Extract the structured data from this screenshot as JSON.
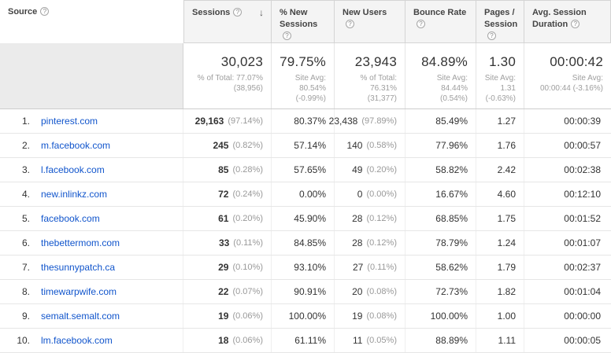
{
  "icons": {
    "help": "?",
    "sort_descending": "↓"
  },
  "header": {
    "columns": [
      {
        "label": "Source"
      },
      {
        "label": "Sessions"
      },
      {
        "label": "% New Sessions"
      },
      {
        "label": "New Users"
      },
      {
        "label": "Bounce Rate"
      },
      {
        "label": "Pages / Session"
      },
      {
        "label": "Avg. Session Duration"
      }
    ]
  },
  "summary": {
    "sessions": {
      "value": "30,023",
      "line1": "% of Total: 77.07%",
      "line2": "(38,956)"
    },
    "new_sessions": {
      "value": "79.75%",
      "line1": "Site Avg: 80.54%",
      "line2": "(-0.99%)"
    },
    "new_users": {
      "value": "23,943",
      "line1": "% of Total: 76.31%",
      "line2": "(31,377)"
    },
    "bounce_rate": {
      "value": "84.89%",
      "line1": "Site Avg: 84.44%",
      "line2": "(0.54%)"
    },
    "pages_session": {
      "value": "1.30",
      "line1": "Site Avg: 1.31",
      "line2": "(-0.63%)"
    },
    "avg_duration": {
      "value": "00:00:42",
      "line1": "Site Avg:",
      "line2": "00:00:44 (-3.16%)"
    }
  },
  "rows": [
    {
      "rank": "1.",
      "source": "pinterest.com",
      "sessions": "29,163",
      "sessions_pct": "(97.14%)",
      "new_sessions": "80.37%",
      "new_users": "23,438",
      "new_users_pct": "(97.89%)",
      "bounce_rate": "85.49%",
      "pages_session": "1.27",
      "avg_duration": "00:00:39"
    },
    {
      "rank": "2.",
      "source": "m.facebook.com",
      "sessions": "245",
      "sessions_pct": "(0.82%)",
      "new_sessions": "57.14%",
      "new_users": "140",
      "new_users_pct": "(0.58%)",
      "bounce_rate": "77.96%",
      "pages_session": "1.76",
      "avg_duration": "00:00:57"
    },
    {
      "rank": "3.",
      "source": "l.facebook.com",
      "sessions": "85",
      "sessions_pct": "(0.28%)",
      "new_sessions": "57.65%",
      "new_users": "49",
      "new_users_pct": "(0.20%)",
      "bounce_rate": "58.82%",
      "pages_session": "2.42",
      "avg_duration": "00:02:38"
    },
    {
      "rank": "4.",
      "source": "new.inlinkz.com",
      "sessions": "72",
      "sessions_pct": "(0.24%)",
      "new_sessions": "0.00%",
      "new_users": "0",
      "new_users_pct": "(0.00%)",
      "bounce_rate": "16.67%",
      "pages_session": "4.60",
      "avg_duration": "00:12:10"
    },
    {
      "rank": "5.",
      "source": "facebook.com",
      "sessions": "61",
      "sessions_pct": "(0.20%)",
      "new_sessions": "45.90%",
      "new_users": "28",
      "new_users_pct": "(0.12%)",
      "bounce_rate": "68.85%",
      "pages_session": "1.75",
      "avg_duration": "00:01:52"
    },
    {
      "rank": "6.",
      "source": "thebettermom.com",
      "sessions": "33",
      "sessions_pct": "(0.11%)",
      "new_sessions": "84.85%",
      "new_users": "28",
      "new_users_pct": "(0.12%)",
      "bounce_rate": "78.79%",
      "pages_session": "1.24",
      "avg_duration": "00:01:07"
    },
    {
      "rank": "7.",
      "source": "thesunnypatch.ca",
      "sessions": "29",
      "sessions_pct": "(0.10%)",
      "new_sessions": "93.10%",
      "new_users": "27",
      "new_users_pct": "(0.11%)",
      "bounce_rate": "58.62%",
      "pages_session": "1.79",
      "avg_duration": "00:02:37"
    },
    {
      "rank": "8.",
      "source": "timewarpwife.com",
      "sessions": "22",
      "sessions_pct": "(0.07%)",
      "new_sessions": "90.91%",
      "new_users": "20",
      "new_users_pct": "(0.08%)",
      "bounce_rate": "72.73%",
      "pages_session": "1.82",
      "avg_duration": "00:01:04"
    },
    {
      "rank": "9.",
      "source": "semalt.semalt.com",
      "sessions": "19",
      "sessions_pct": "(0.06%)",
      "new_sessions": "100.00%",
      "new_users": "19",
      "new_users_pct": "(0.08%)",
      "bounce_rate": "100.00%",
      "pages_session": "1.00",
      "avg_duration": "00:00:00"
    },
    {
      "rank": "10.",
      "source": "lm.facebook.com",
      "sessions": "18",
      "sessions_pct": "(0.06%)",
      "new_sessions": "61.11%",
      "new_users": "11",
      "new_users_pct": "(0.05%)",
      "bounce_rate": "88.89%",
      "pages_session": "1.11",
      "avg_duration": "00:00:05"
    }
  ]
}
